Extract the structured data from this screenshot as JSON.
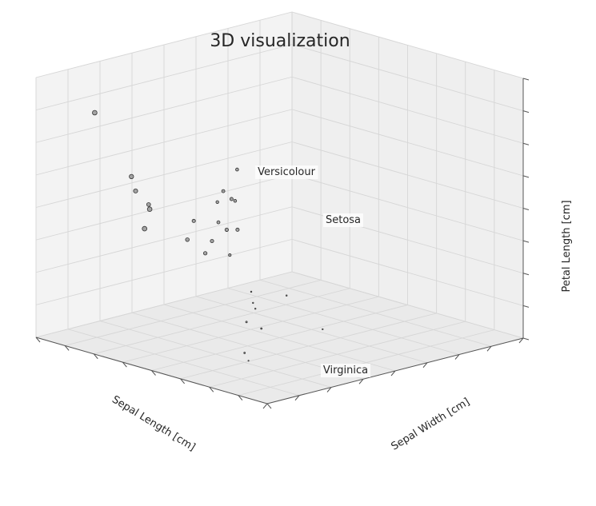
{
  "chart_data": {
    "type": "scatter",
    "projection": "3d",
    "title": "3D visualization",
    "xlabel": "Sepal Length [cm]",
    "ylabel": "Sepal Width [cm]",
    "zlabel": "Petal Length [cm]",
    "grid": true,
    "tick_labels_shown": false,
    "annotations": [
      {
        "text": "Versicolour"
      },
      {
        "text": "Setosa"
      },
      {
        "text": "Virginica"
      }
    ],
    "points": [
      {
        "x": 0.13,
        "y": 0.89,
        "z": 0.86,
        "size": 5.5
      },
      {
        "x": 0.12,
        "y": 0.72,
        "z": 0.66,
        "size": 5.2
      },
      {
        "x": 0.1,
        "y": 0.68,
        "z": 0.62,
        "size": 5.0
      },
      {
        "x": 0.11,
        "y": 0.63,
        "z": 0.56,
        "size": 5.5
      },
      {
        "x": 0.09,
        "y": 0.63,
        "z": 0.49,
        "size": 5.5
      },
      {
        "x": 0.16,
        "y": 0.69,
        "z": 0.55,
        "size": 4.6
      },
      {
        "x": 0.23,
        "y": 0.6,
        "z": 0.42,
        "size": 4.4
      },
      {
        "x": 0.3,
        "y": 0.6,
        "z": 0.35,
        "size": 4.2
      },
      {
        "x": 0.29,
        "y": 0.56,
        "z": 0.41,
        "size": 4.1
      },
      {
        "x": 0.21,
        "y": 0.55,
        "z": 0.51,
        "size": 4.0
      },
      {
        "x": 0.42,
        "y": 0.64,
        "z": 0.4,
        "size": 4.1
      },
      {
        "x": 0.48,
        "y": 0.66,
        "z": 0.38,
        "size": 4.0
      },
      {
        "x": 0.56,
        "y": 0.81,
        "z": 0.47,
        "size": 3.8
      },
      {
        "x": 0.52,
        "y": 0.73,
        "z": 0.47,
        "size": 3.9
      },
      {
        "x": 0.57,
        "y": 0.77,
        "z": 0.44,
        "size": 3.5
      },
      {
        "x": 0.65,
        "y": 0.85,
        "z": 0.52,
        "size": 3.6
      },
      {
        "x": 0.6,
        "y": 0.88,
        "z": 0.4,
        "size": 3.4
      },
      {
        "x": 0.55,
        "y": 0.82,
        "z": 0.35,
        "size": 3.7
      },
      {
        "x": 0.45,
        "y": 0.66,
        "z": 0.29,
        "size": 3.2
      },
      {
        "x": 0.47,
        "y": 0.61,
        "z": 0.04,
        "size": 2.0
      },
      {
        "x": 0.66,
        "y": 0.8,
        "z": 0.06,
        "size": 1.6
      },
      {
        "x": 0.64,
        "y": 0.77,
        "z": 0.03,
        "size": 1.5
      },
      {
        "x": 0.64,
        "y": 0.76,
        "z": 0.01,
        "size": 1.5
      },
      {
        "x": 0.78,
        "y": 0.78,
        "z": 0.02,
        "size": 1.6
      },
      {
        "x": 0.51,
        "y": 0.59,
        "z": 0.01,
        "size": 1.8
      },
      {
        "x": 0.3,
        "y": 0.43,
        "z": 0.01,
        "size": 1.8
      },
      {
        "x": 0.27,
        "y": 0.38,
        "z": 0.0,
        "size": 1.3
      },
      {
        "x": 0.65,
        "y": 0.48,
        "z": 0.0,
        "size": 1.4
      }
    ]
  }
}
